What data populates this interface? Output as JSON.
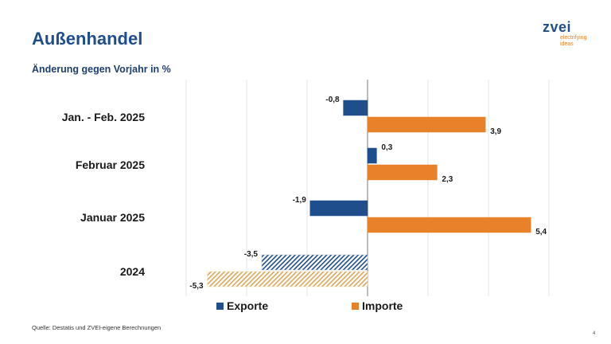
{
  "slide": {
    "title": "Außenhandel",
    "subtitle": "Änderung gegen Vorjahr in %",
    "source": "Quelle: Destatis und ZVEI-eigene Berechnungen",
    "page_number": "4"
  },
  "logo": {
    "word": "zvei",
    "tagline_1": "electrifying",
    "tagline_2": "ideas"
  },
  "colors": {
    "title": "#1f4e8c",
    "exports": "#1f4e8c",
    "imports": "#e8822a",
    "exports_hatch": "#aab9cf",
    "imports_hatch": "#f2d9ae",
    "grid": "#e6e6e6",
    "axis": "#777777"
  },
  "chart_data": {
    "type": "bar",
    "orientation": "horizontal",
    "categories": [
      "Jan. - Feb. 2025",
      "Februar 2025",
      "Januar 2025",
      "2024"
    ],
    "series": [
      {
        "name": "Exporte",
        "values": [
          -0.8,
          0.3,
          -1.9,
          -3.5
        ]
      },
      {
        "name": "Importe",
        "values": [
          3.9,
          2.3,
          5.4,
          -5.3
        ]
      }
    ],
    "value_labels": {
      "Exporte": [
        "-0,8",
        "0,3",
        "-1,9",
        "-3,5"
      ],
      "Importe": [
        "3,9",
        "2,3",
        "5,4",
        "-5,3"
      ]
    },
    "hatched_categories": [
      "2024"
    ],
    "xlim": [
      -7,
      7
    ],
    "grid": true,
    "legend_position": "bottom"
  }
}
